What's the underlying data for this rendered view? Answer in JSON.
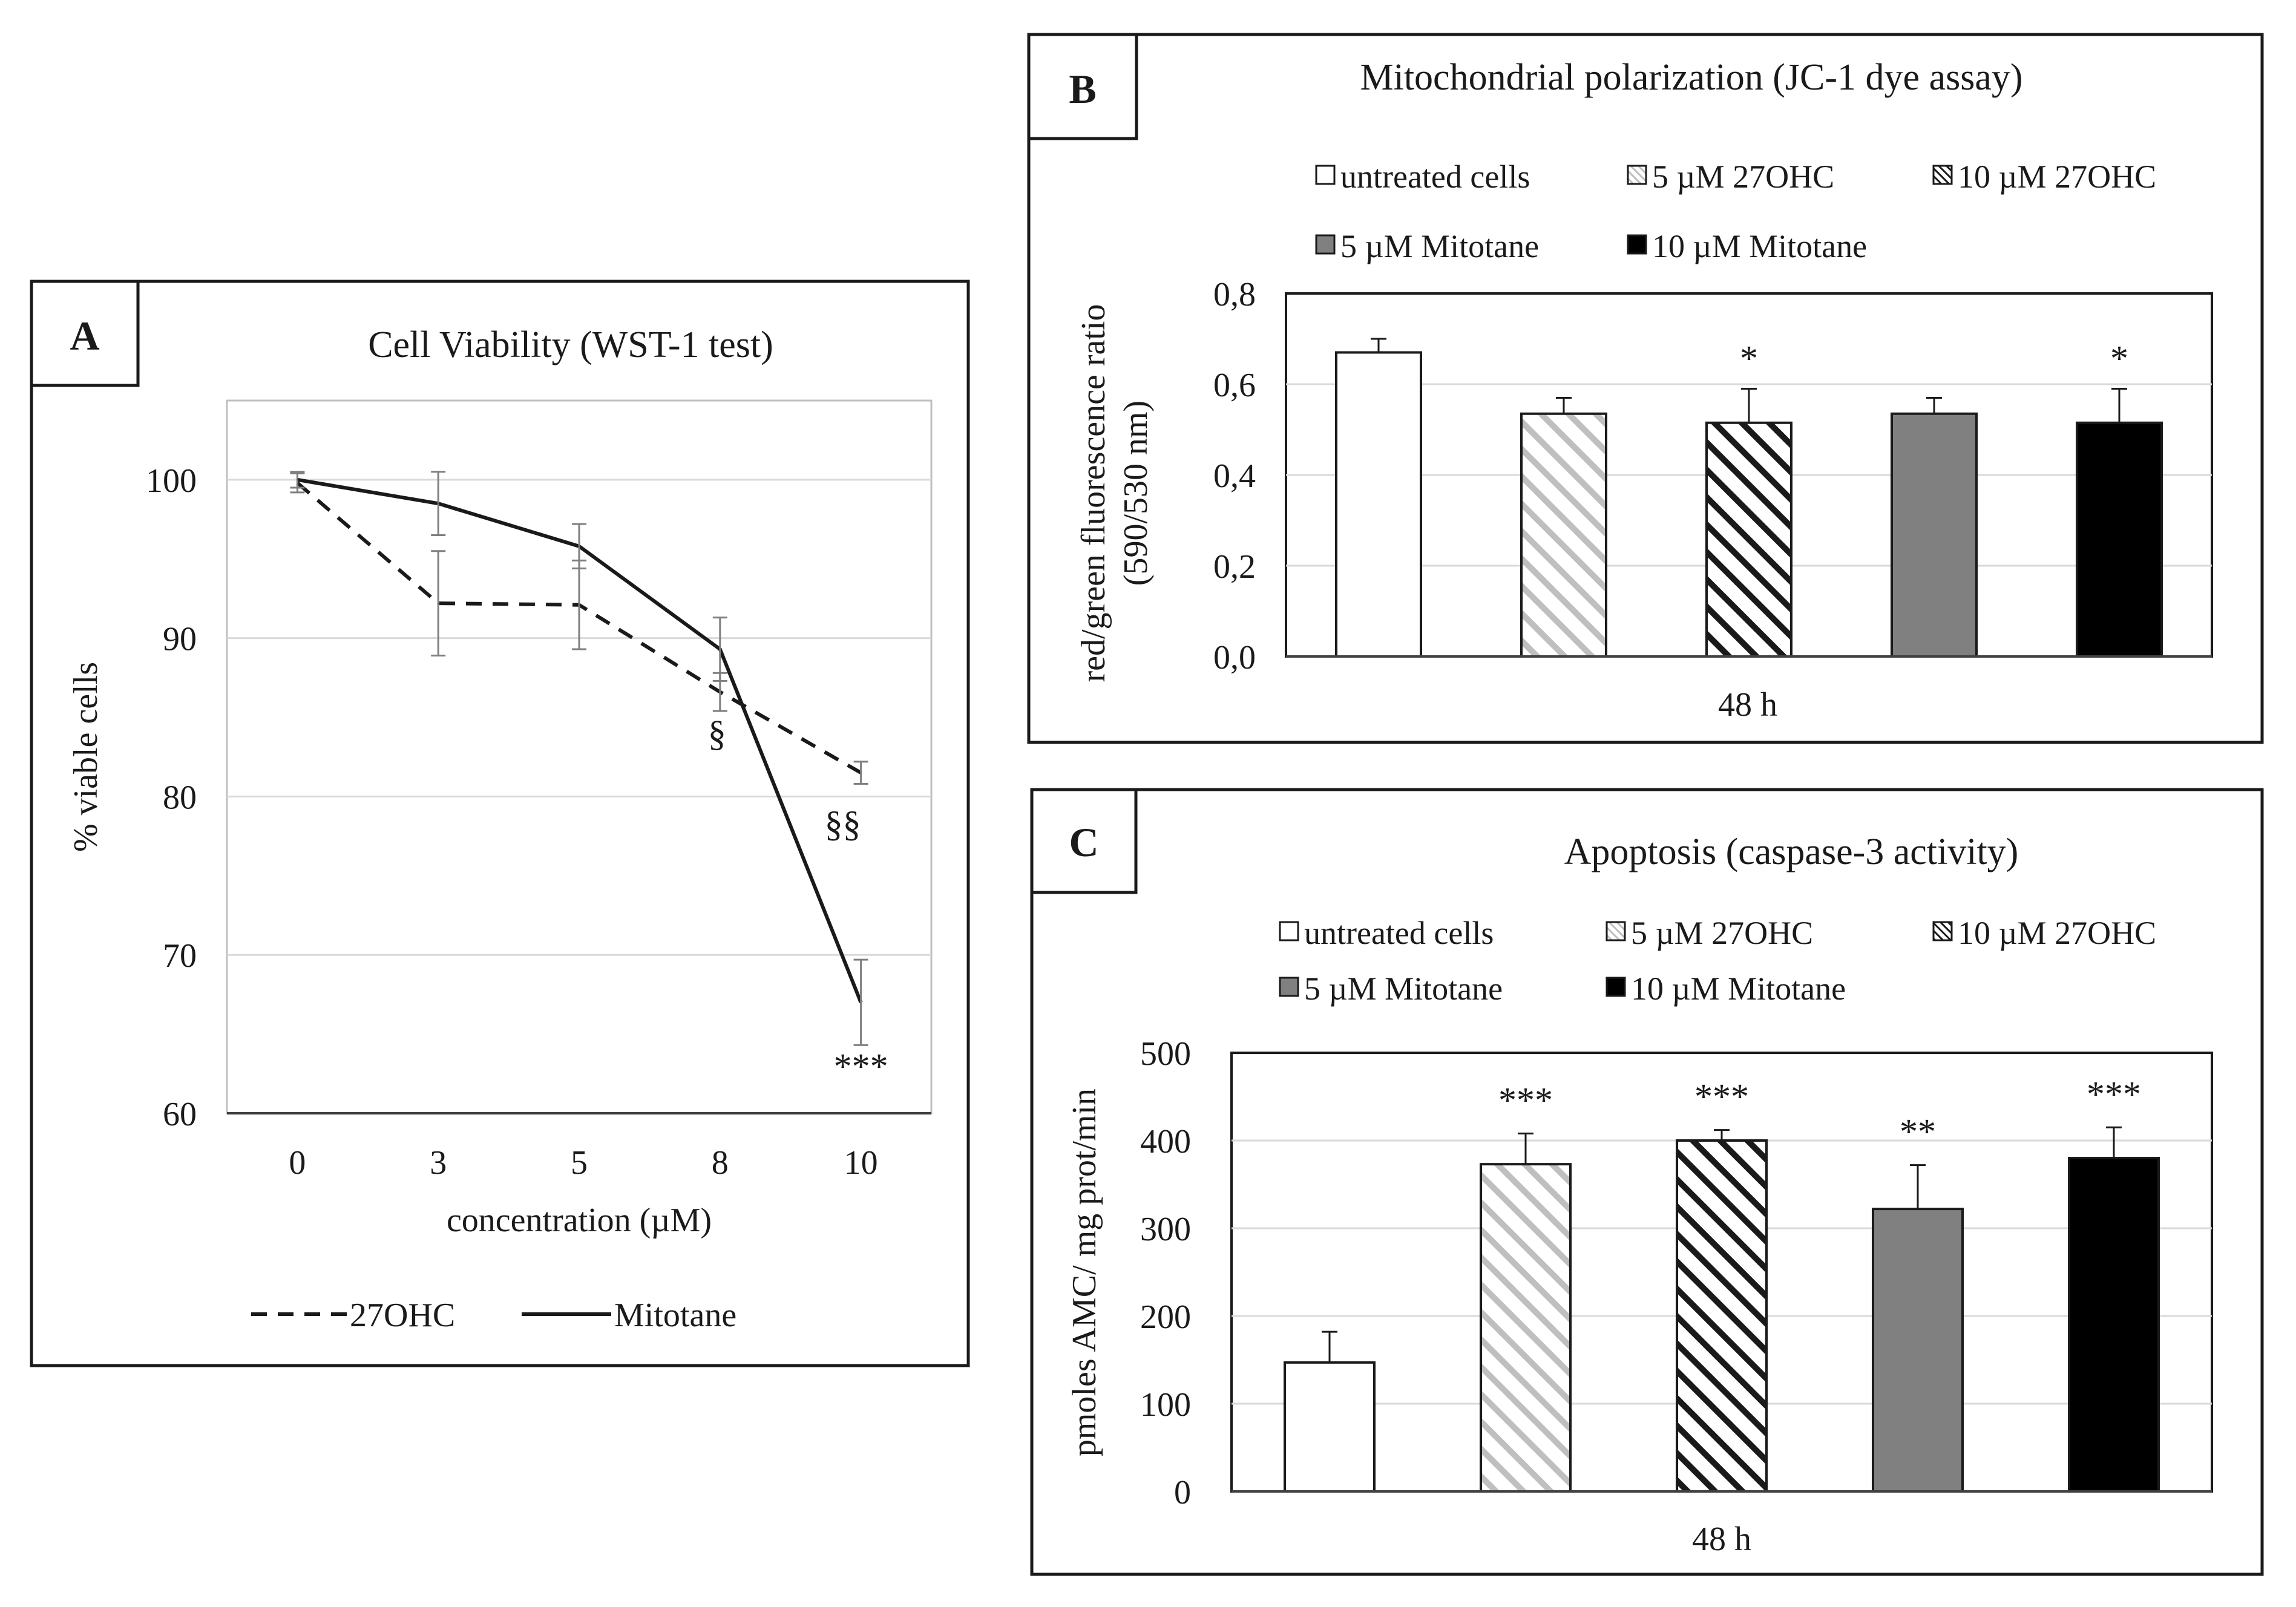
{
  "colors": {
    "ink": "#1a1a1a",
    "grid": "#d9d9d9",
    "axis": "#404040",
    "errbar_a": "#7f7f7f",
    "light_hatch": "#bfbfbf",
    "dark_hatch": "#1a1a1a",
    "mitotane_5": "#808080",
    "mitotane_10": "#000000",
    "white": "#ffffff"
  },
  "chart_data": [
    {
      "panel": "A",
      "type": "line",
      "title": "Cell Viability (WST-1 test)",
      "xlabel": "concentration (µM)",
      "ylabel": "% viable cells",
      "categories": [
        "0",
        "3",
        "5",
        "8",
        "10"
      ],
      "yticks": [
        "60",
        "70",
        "80",
        "90",
        "100"
      ],
      "ylim": [
        60,
        105
      ],
      "grid": true,
      "legend_position": "bottom",
      "series": [
        {
          "name": "27OHC",
          "style": "dashed",
          "values": [
            99.8,
            92.2,
            92.1,
            86.6,
            81.5
          ],
          "errors": [
            0.6,
            3.3,
            2.8,
            1.2,
            0.7
          ]
        },
        {
          "name": "Mitotane",
          "style": "solid",
          "values": [
            100.0,
            98.5,
            95.8,
            89.3,
            67.0
          ],
          "errors": [
            0.5,
            2.0,
            1.4,
            2.0,
            2.7
          ]
        }
      ],
      "annotations": [
        {
          "category": "8",
          "value": 83.2,
          "text": "§"
        },
        {
          "category": "10",
          "value": 77.5,
          "text": "§§"
        },
        {
          "category": "10",
          "value": 62.2,
          "text": "***"
        }
      ]
    },
    {
      "panel": "B",
      "type": "bar",
      "title": "Mitochondrial polarization (JC-1 dye assay)",
      "ylabel_line1": "red/green fluorescence ratio",
      "ylabel_line2": "(590/530 nm)",
      "xlabel": "48 h",
      "yticks": [
        "0,0",
        "0,2",
        "0,4",
        "0,6",
        "0,8"
      ],
      "ylim": [
        0,
        0.8
      ],
      "grid": true,
      "legend_position": "top",
      "categories": [
        "untreated cells",
        "5 µM 27OHC",
        "10 µM 27OHC",
        "5 µM Mitotane",
        "10 µM Mitotane"
      ],
      "values": [
        0.67,
        0.535,
        0.515,
        0.535,
        0.515
      ],
      "errors": [
        0.03,
        0.035,
        0.075,
        0.035,
        0.075
      ],
      "significance": [
        "",
        "",
        "*",
        "",
        "*"
      ]
    },
    {
      "panel": "C",
      "type": "bar",
      "title": "Apoptosis (caspase-3 activity)",
      "ylabel": "pmoles AMC/ mg prot/min",
      "xlabel": "48 h",
      "yticks": [
        "0",
        "100",
        "200",
        "300",
        "400",
        "500"
      ],
      "ylim": [
        0,
        500
      ],
      "grid": true,
      "legend_position": "top",
      "categories": [
        "untreated cells",
        "5 µM 27OHC",
        "10 µM 27OHC",
        "5 µM Mitotane",
        "10 µM Mitotane"
      ],
      "values": [
        147,
        373,
        400,
        322,
        380
      ],
      "errors": [
        35,
        35,
        12,
        50,
        35
      ],
      "significance": [
        "",
        "***",
        "***",
        "**",
        "***"
      ]
    }
  ]
}
